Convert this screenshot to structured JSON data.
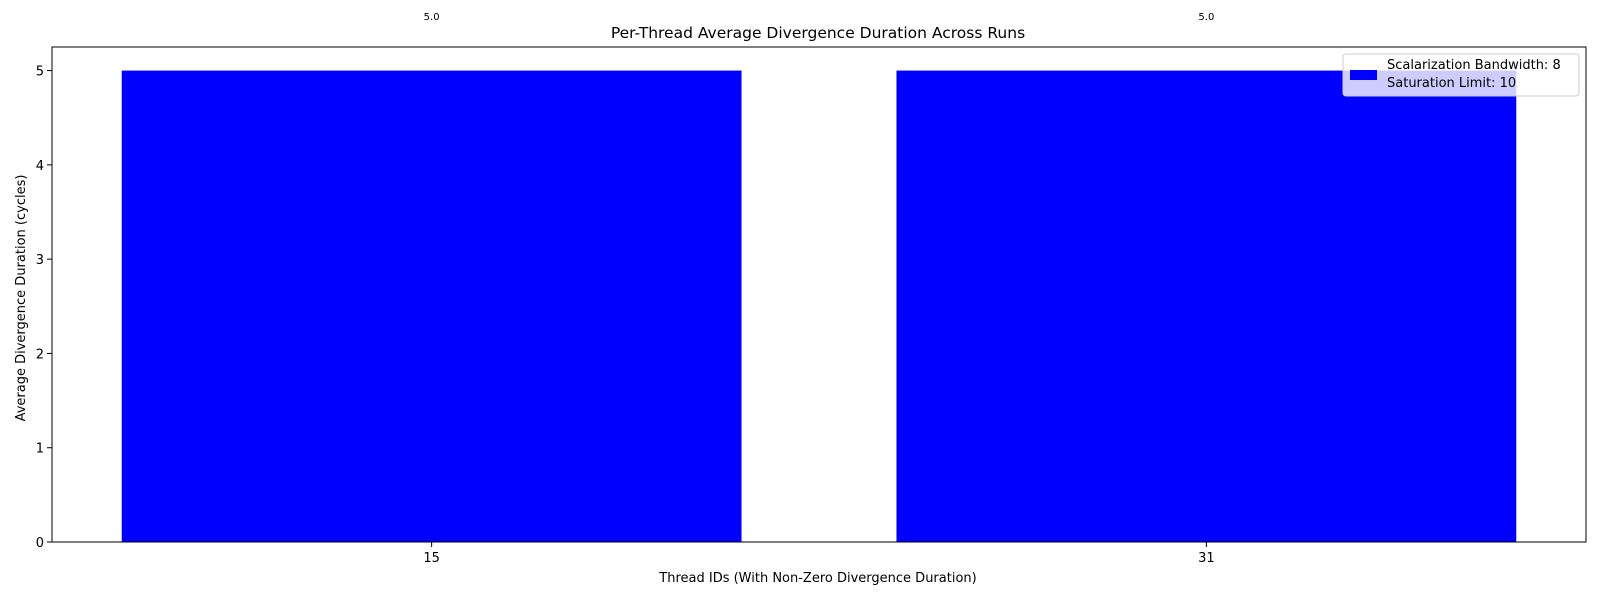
{
  "chart_data": {
    "type": "bar",
    "title": "Per-Thread Average Divergence Duration Across Runs",
    "xlabel": "Thread IDs (With Non-Zero Divergence Duration)",
    "ylabel": "Average Divergence Duration (cycles)",
    "categories": [
      "15",
      "31"
    ],
    "series": [
      {
        "name": "Scalarization Bandwidth: 8\nSaturation Limit: 10",
        "values": [
          5.0,
          5.0
        ],
        "color": "#0000ff"
      }
    ],
    "data_labels": [
      "5.0",
      "5.0"
    ],
    "ylim": [
      0,
      5.25
    ],
    "yticks": [
      0,
      1,
      2,
      3,
      4,
      5
    ],
    "legend_lines": [
      "Scalarization Bandwidth: 8",
      "Saturation Limit: 10"
    ],
    "legend_position": "top-right",
    "grid": false
  }
}
